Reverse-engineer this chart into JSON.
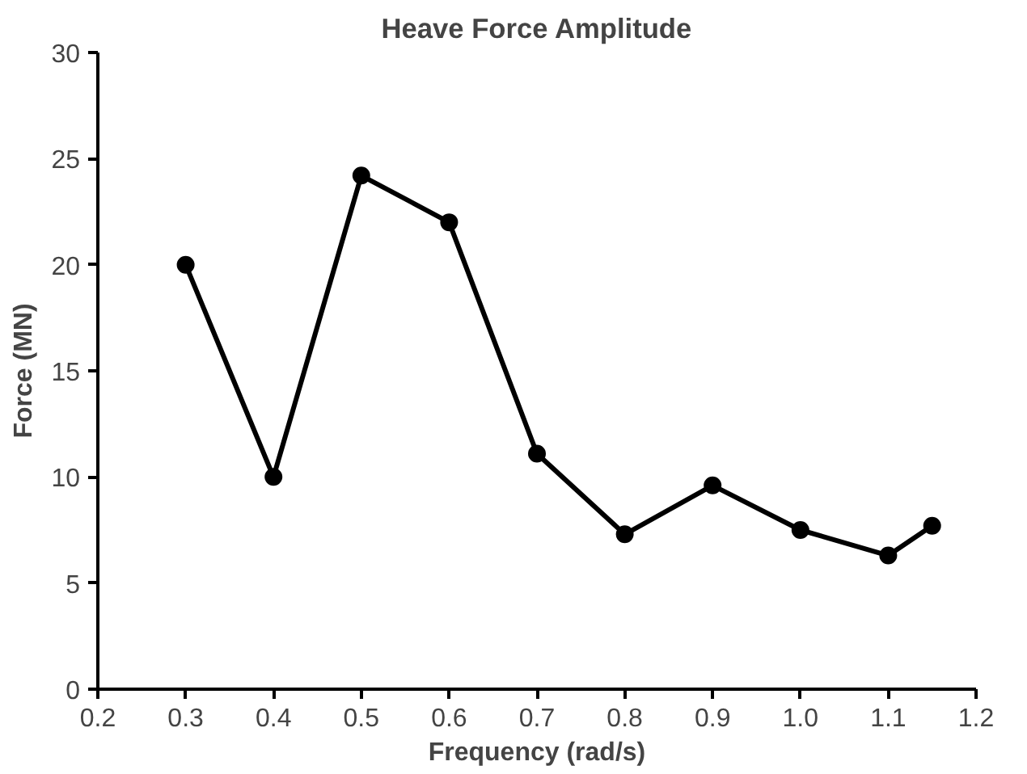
{
  "chart_data": {
    "type": "line",
    "title": "Heave Force Amplitude",
    "xlabel": "Frequency (rad/s)",
    "ylabel": "Force (MN)",
    "x": [
      0.3,
      0.4,
      0.5,
      0.6,
      0.7,
      0.8,
      0.9,
      1.0,
      1.1,
      1.15
    ],
    "series": [
      {
        "color": "#000000",
        "values": [
          20,
          10,
          24.2,
          22.0,
          11.1,
          7.3,
          9.6,
          7.5,
          6.3,
          7.7
        ]
      }
    ],
    "xlim": [
      0.2,
      1.2
    ],
    "xticks": [
      0.2,
      0.3,
      0.4,
      0.5,
      0.6,
      0.7,
      0.8,
      0.9,
      {
        "value": 1.0,
        "label": "1.0"
      },
      1.1,
      1.2
    ],
    "ylim": [
      0,
      30
    ],
    "yticks": [
      0,
      5,
      10,
      15,
      20,
      25,
      30
    ],
    "marker": "circle",
    "grid": false
  }
}
